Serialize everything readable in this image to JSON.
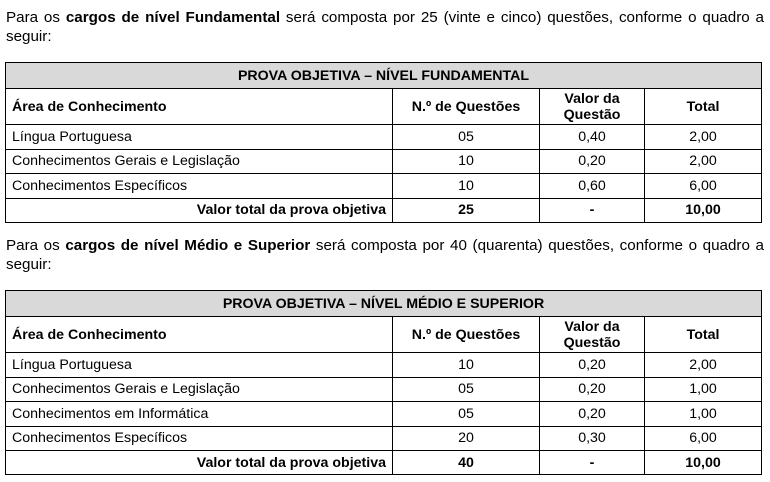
{
  "section1": {
    "intro": {
      "part1": "Para os ",
      "bold": "cargos de nível Fundamental",
      "part2": " será composta por 25 (vinte e cinco) questões, conforme o quadro a seguir:"
    },
    "table": {
      "title": "PROVA OBJETIVA – NÍVEL FUNDAMENTAL",
      "headers": {
        "area": "Área de Conhecimento",
        "num": "N.º de Questões",
        "value_line1": "Valor da",
        "value_line2": "Questão",
        "total": "Total"
      },
      "rows": [
        {
          "area": "Língua Portuguesa",
          "num": "05",
          "value": "0,40",
          "total": "2,00"
        },
        {
          "area": "Conhecimentos Gerais e Legislação",
          "num": "10",
          "value": "0,20",
          "total": "2,00"
        },
        {
          "area": "Conhecimentos Específicos",
          "num": "10",
          "value": "0,60",
          "total": "6,00"
        }
      ],
      "footer": {
        "label": "Valor total da prova objetiva",
        "num": "25",
        "value": "-",
        "total": "10,00"
      }
    }
  },
  "section2": {
    "intro": {
      "part1": "Para os ",
      "bold": "cargos de nível Médio e Superior",
      "part2": " será composta por 40 (quarenta) questões, conforme o quadro a seguir:"
    },
    "table": {
      "title": "PROVA OBJETIVA – NÍVEL MÉDIO E SUPERIOR",
      "headers": {
        "area": "Área de Conhecimento",
        "num": "N.º de Questões",
        "value_line1": "Valor da",
        "value_line2": "Questão",
        "total": "Total"
      },
      "rows": [
        {
          "area": "Língua Portuguesa",
          "num": "10",
          "value": "0,20",
          "total": "2,00"
        },
        {
          "area": "Conhecimentos Gerais e Legislação",
          "num": "05",
          "value": "0,20",
          "total": "1,00"
        },
        {
          "area": "Conhecimentos em Informática",
          "num": "05",
          "value": "0,20",
          "total": "1,00"
        },
        {
          "area": "Conhecimentos Específicos",
          "num": "20",
          "value": "0,30",
          "total": "6,00"
        }
      ],
      "footer": {
        "label": "Valor total da prova objetiva",
        "num": "40",
        "value": "-",
        "total": "10,00"
      }
    }
  },
  "colors": {
    "title_background": "#d9d9d9",
    "border": "#000000",
    "text": "#000000"
  }
}
